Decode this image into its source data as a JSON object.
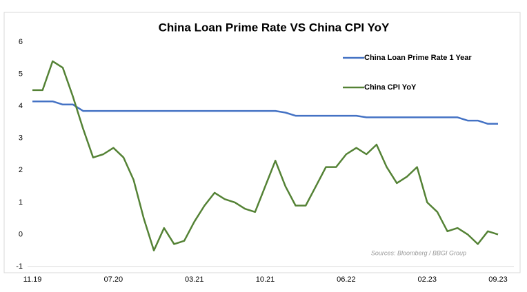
{
  "chart_data": {
    "type": "line",
    "title": "China Loan Prime Rate VS China CPI YoY",
    "source": "Sources: Bloomberg / BBGI Group",
    "categories": [
      "11.19",
      null,
      null,
      null,
      null,
      null,
      null,
      null,
      "07.20",
      null,
      null,
      null,
      null,
      null,
      null,
      null,
      "03.21",
      null,
      null,
      null,
      null,
      null,
      null,
      "10.21",
      null,
      null,
      null,
      null,
      null,
      null,
      null,
      "06.22",
      null,
      null,
      null,
      null,
      null,
      null,
      null,
      "02.23",
      null,
      null,
      null,
      null,
      null,
      null,
      "09.23"
    ],
    "series": [
      {
        "name": "China Loan Prime Rate 1 Year",
        "color": "#4472c4",
        "values": [
          4.15,
          4.15,
          4.15,
          4.05,
          4.05,
          3.85,
          3.85,
          3.85,
          3.85,
          3.85,
          3.85,
          3.85,
          3.85,
          3.85,
          3.85,
          3.85,
          3.85,
          3.85,
          3.85,
          3.85,
          3.85,
          3.85,
          3.85,
          3.85,
          3.85,
          3.8,
          3.7,
          3.7,
          3.7,
          3.7,
          3.7,
          3.7,
          3.7,
          3.65,
          3.65,
          3.65,
          3.65,
          3.65,
          3.65,
          3.65,
          3.65,
          3.65,
          3.65,
          3.55,
          3.55,
          3.45,
          3.45
        ]
      },
      {
        "name": "China CPI YoY",
        "color": "#548235",
        "values": [
          4.5,
          4.5,
          5.4,
          5.2,
          4.3,
          3.3,
          2.4,
          2.5,
          2.7,
          2.4,
          1.7,
          0.5,
          -0.5,
          0.2,
          -0.3,
          -0.2,
          0.4,
          0.9,
          1.3,
          1.1,
          1.0,
          0.8,
          0.7,
          1.5,
          2.3,
          1.5,
          0.9,
          0.9,
          1.5,
          2.1,
          2.1,
          2.5,
          2.7,
          2.5,
          2.8,
          2.1,
          1.6,
          1.8,
          2.1,
          1.0,
          0.7,
          0.1,
          0.2,
          0.0,
          -0.3,
          0.1,
          0.0
        ]
      }
    ],
    "ylim": [
      -1,
      6
    ],
    "yticks": [
      -1,
      0,
      1,
      2,
      3,
      4,
      5,
      6
    ],
    "legend": "top-right"
  }
}
